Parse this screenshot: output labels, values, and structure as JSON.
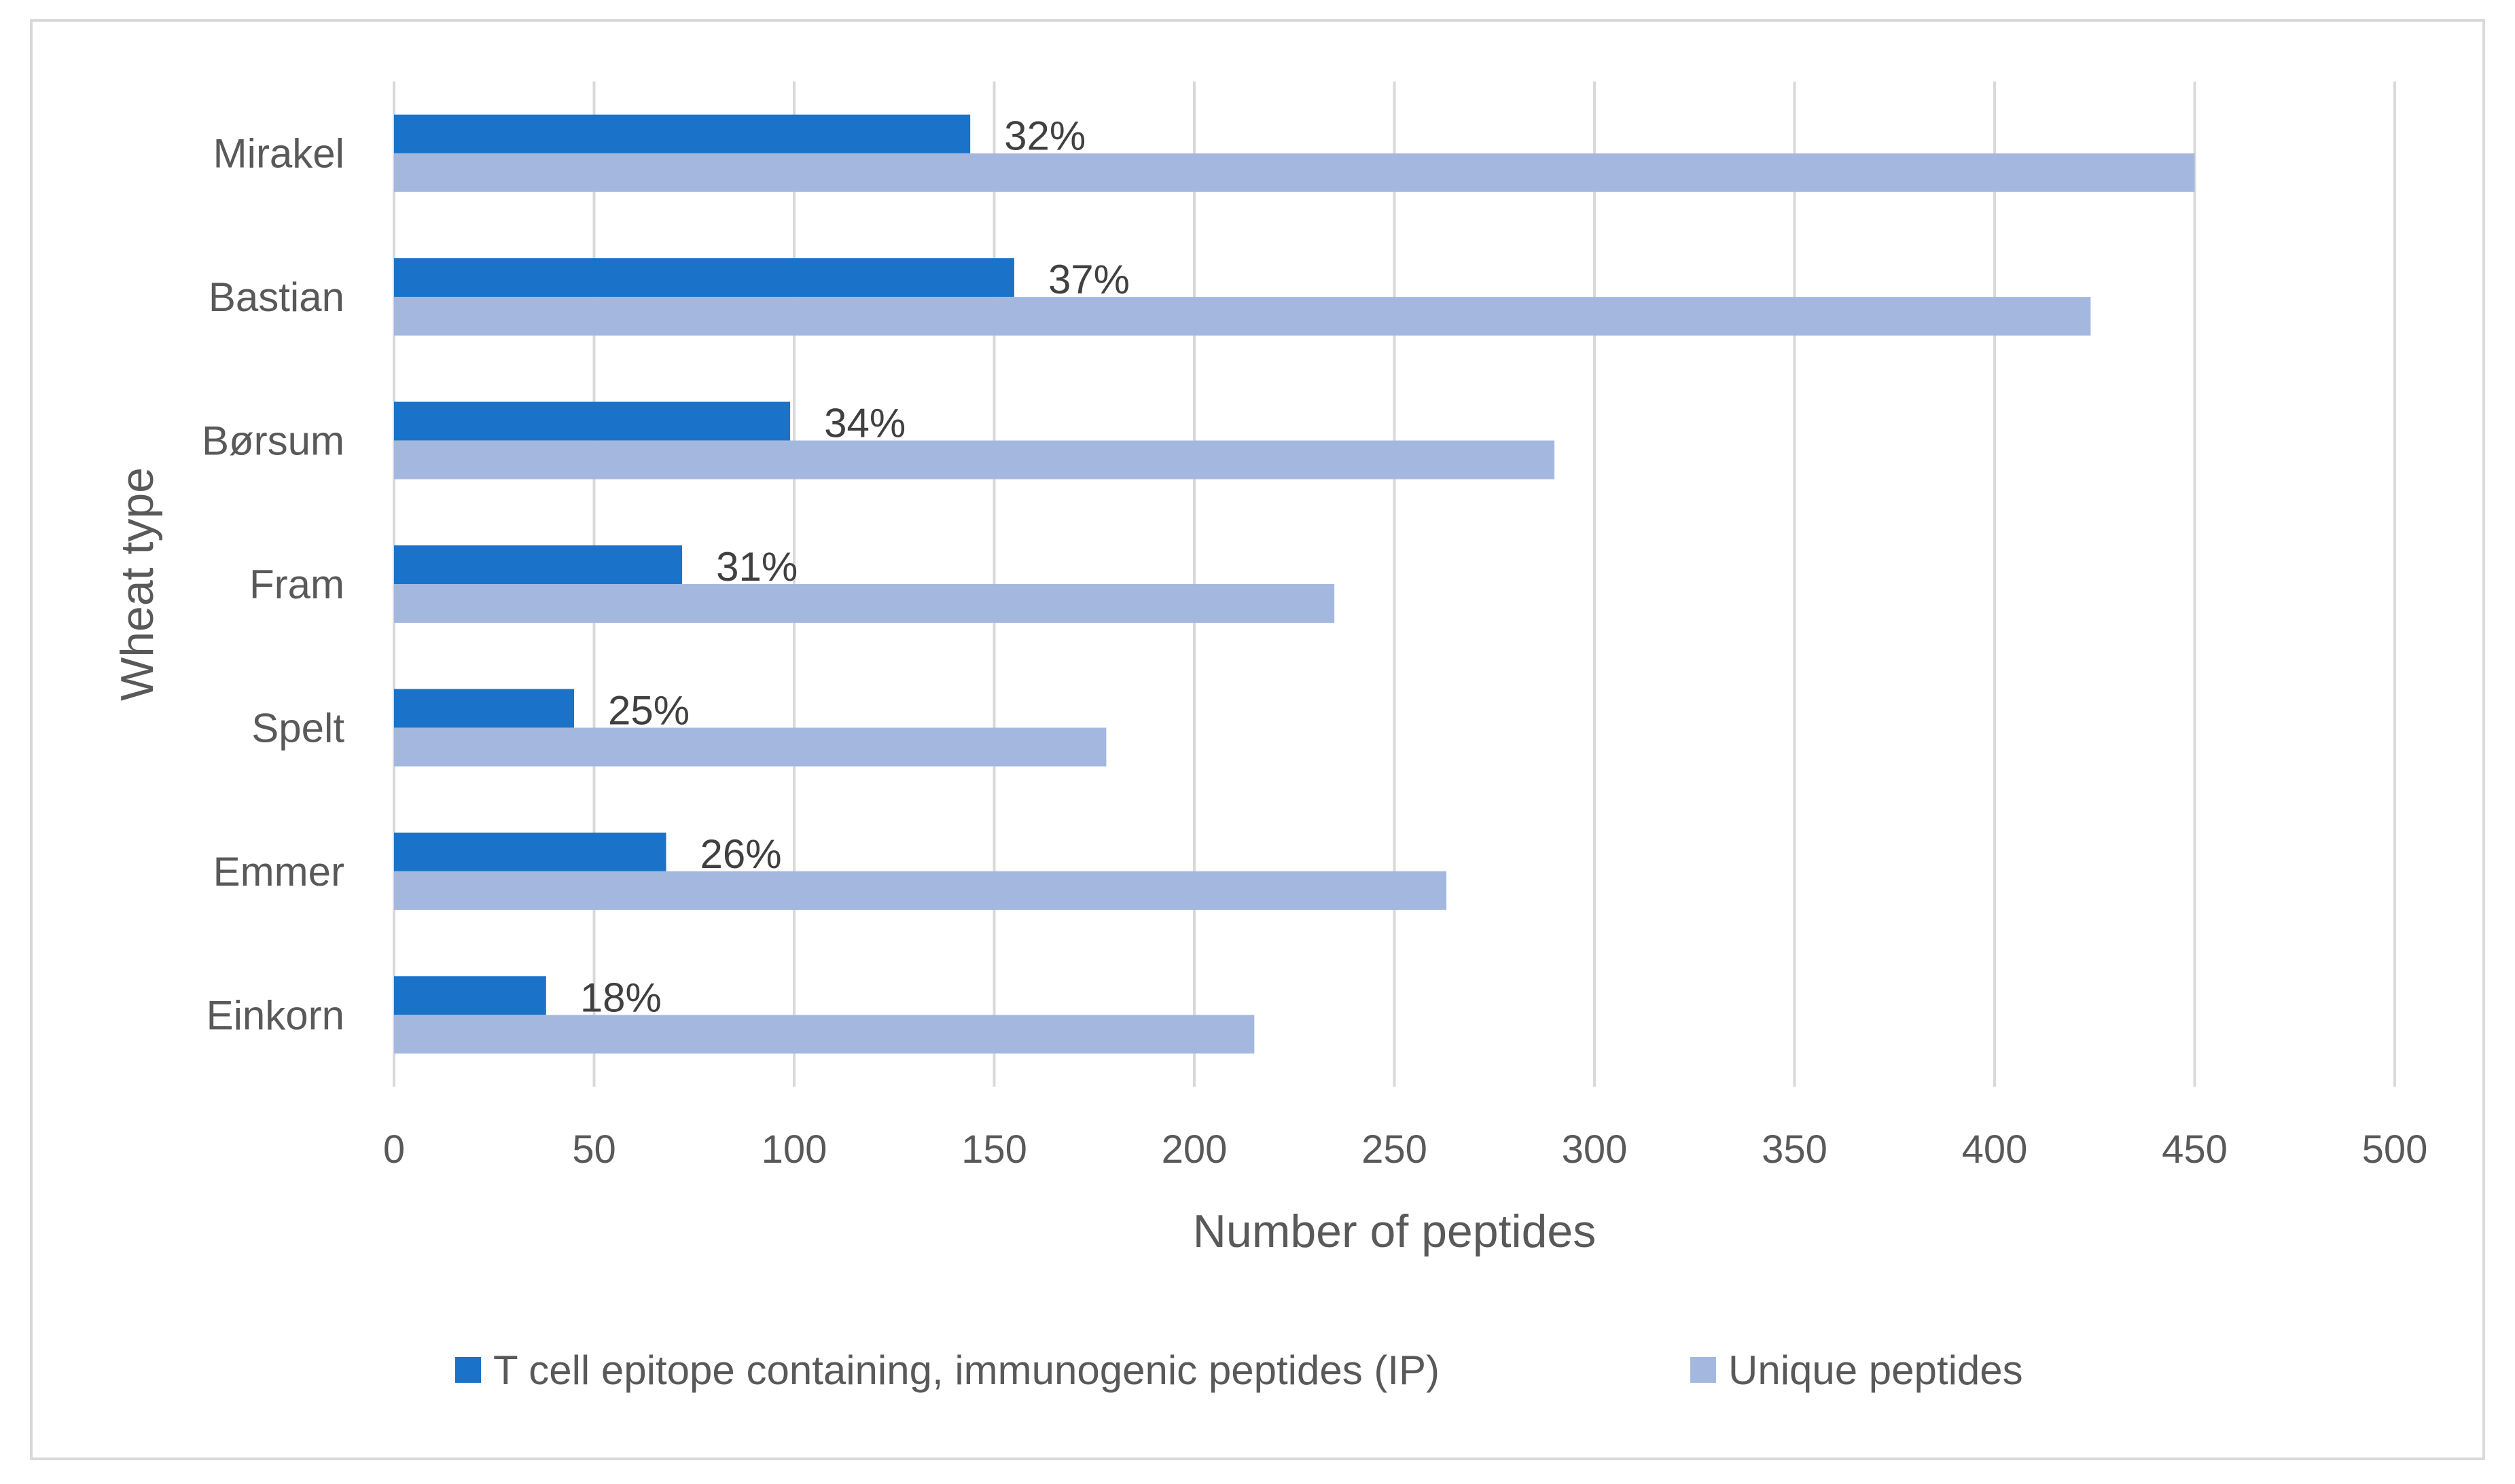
{
  "chart_data": {
    "type": "bar",
    "orientation": "horizontal",
    "title": "",
    "xlabel": "Number of peptides",
    "ylabel": "Wheat type",
    "xlim": [
      0,
      500
    ],
    "xticks": [
      0,
      50,
      100,
      150,
      200,
      250,
      300,
      350,
      400,
      450,
      500
    ],
    "grid": true,
    "legend_position": "bottom",
    "categories": [
      "Mirakel",
      "Bastian",
      "Børsum",
      "Fram",
      "Spelt",
      "Emmer",
      "Einkorn"
    ],
    "series": [
      {
        "name": "T cell epitope containing, immunogenic peptides (IP)",
        "color": "#1a73c8",
        "values": [
          144,
          155,
          99,
          72,
          45,
          68,
          38
        ],
        "labels": [
          "32%",
          "37%",
          "34%",
          "31%",
          "25%",
          "26%",
          "18%"
        ]
      },
      {
        "name": "Unique peptides",
        "color": "#a4b8df",
        "values": [
          450,
          424,
          290,
          235,
          178,
          263,
          215
        ]
      }
    ]
  }
}
